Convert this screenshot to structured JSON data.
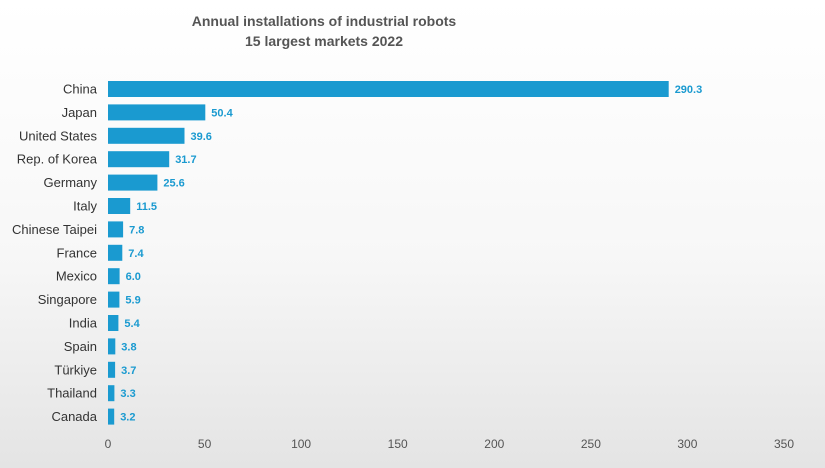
{
  "chart_data": {
    "type": "bar",
    "orientation": "horizontal",
    "title": [
      "Annual installations of industrial robots",
      "15 largest markets 2022"
    ],
    "categories": [
      "China",
      "Japan",
      "United States",
      "Rep. of Korea",
      "Germany",
      "Italy",
      "Chinese Taipei",
      "France",
      "Mexico",
      "Singapore",
      "India",
      "Spain",
      "Türkiye",
      "Thailand",
      "Canada"
    ],
    "values": [
      290.3,
      50.4,
      39.6,
      31.7,
      25.6,
      11.5,
      7.8,
      7.4,
      6.0,
      5.9,
      5.4,
      3.8,
      3.7,
      3.3,
      3.2
    ],
    "value_labels": [
      "290.3",
      "50.4",
      "39.6",
      "31.7",
      "25.6",
      "11.5",
      "7.8",
      "7.4",
      "6.0",
      "5.9",
      "5.4",
      "3.8",
      "3.7",
      "3.3",
      "3.2"
    ],
    "xticks": [
      "0",
      "50",
      "100",
      "150",
      "200",
      "250",
      "300",
      "350"
    ],
    "xlim": [
      0,
      350
    ],
    "xlabel": "",
    "ylabel": "",
    "grid": false,
    "legend": "none",
    "bar_color": "#1a9ad0",
    "label_color": "#1a9ad0"
  }
}
